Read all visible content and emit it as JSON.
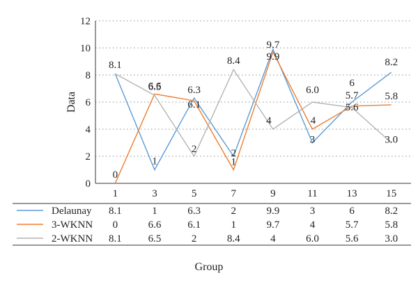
{
  "chart_data": {
    "type": "line",
    "title": "",
    "ylabel": "Data",
    "xlabel": "Group",
    "categories": [
      "1",
      "3",
      "5",
      "7",
      "9",
      "11",
      "13",
      "15"
    ],
    "ylim": [
      0,
      12
    ],
    "yticks": [
      0,
      2,
      4,
      6,
      8,
      10,
      12
    ],
    "grid": "horizontal dotted",
    "legend": "data table below the plot",
    "series": [
      {
        "name": "Delaunay",
        "color": "#5b9bd5",
        "values": [
          8.1,
          1,
          6.3,
          2,
          9.9,
          3,
          6,
          8.2
        ],
        "labels": [
          "8.1",
          "1",
          "6.3",
          "2",
          "9.9",
          "3",
          "6",
          "8.2"
        ]
      },
      {
        "name": "3-WKNN",
        "color": "#ed7d31",
        "values": [
          0,
          6.6,
          6.1,
          1,
          9.7,
          4,
          5.7,
          5.8
        ],
        "labels": [
          "0",
          "6.6",
          "6.1",
          "1",
          "9.7",
          "4",
          "5.7",
          "5.8"
        ]
      },
      {
        "name": "2-WKNN",
        "color": "#b4b4b4",
        "values": [
          8.1,
          6.5,
          2,
          8.4,
          4,
          6.0,
          5.6,
          3.0
        ],
        "labels": [
          "8.1",
          "6.5",
          "2",
          "8.4",
          "4",
          "6.0",
          "5.6",
          "3.0"
        ]
      }
    ],
    "point_labels": [
      {
        "text": "8.1",
        "series": 0,
        "index": 0
      },
      {
        "text": "0",
        "series": 1,
        "index": 0
      },
      {
        "text": "6.6",
        "series": 1,
        "index": 1
      },
      {
        "text": "6.5",
        "series": 2,
        "index": 1
      },
      {
        "text": "1",
        "series": 0,
        "index": 1
      },
      {
        "text": "6.3",
        "series": 0,
        "index": 2
      },
      {
        "text": "6.1",
        "series": 1,
        "index": 2
      },
      {
        "text": "2",
        "series": 2,
        "index": 2
      },
      {
        "text": "8.4",
        "series": 2,
        "index": 3
      },
      {
        "text": "2",
        "series": 0,
        "index": 3
      },
      {
        "text": "1",
        "series": 1,
        "index": 3
      },
      {
        "text": "9.9",
        "series": 0,
        "index": 4
      },
      {
        "text": "9.7",
        "series": 1,
        "index": 4
      },
      {
        "text": "4",
        "series": 2,
        "index": 4
      },
      {
        "text": "6.0",
        "series": 2,
        "index": 5
      },
      {
        "text": "4",
        "series": 1,
        "index": 5
      },
      {
        "text": "3",
        "series": 0,
        "index": 5
      },
      {
        "text": "6",
        "series": 0,
        "index": 6
      },
      {
        "text": "5.7",
        "series": 1,
        "index": 6
      },
      {
        "text": "5.6",
        "series": 2,
        "index": 6
      },
      {
        "text": "8.2",
        "series": 0,
        "index": 7
      },
      {
        "text": "5.8",
        "series": 1,
        "index": 7
      },
      {
        "text": "3.0",
        "series": 2,
        "index": 7
      }
    ]
  }
}
